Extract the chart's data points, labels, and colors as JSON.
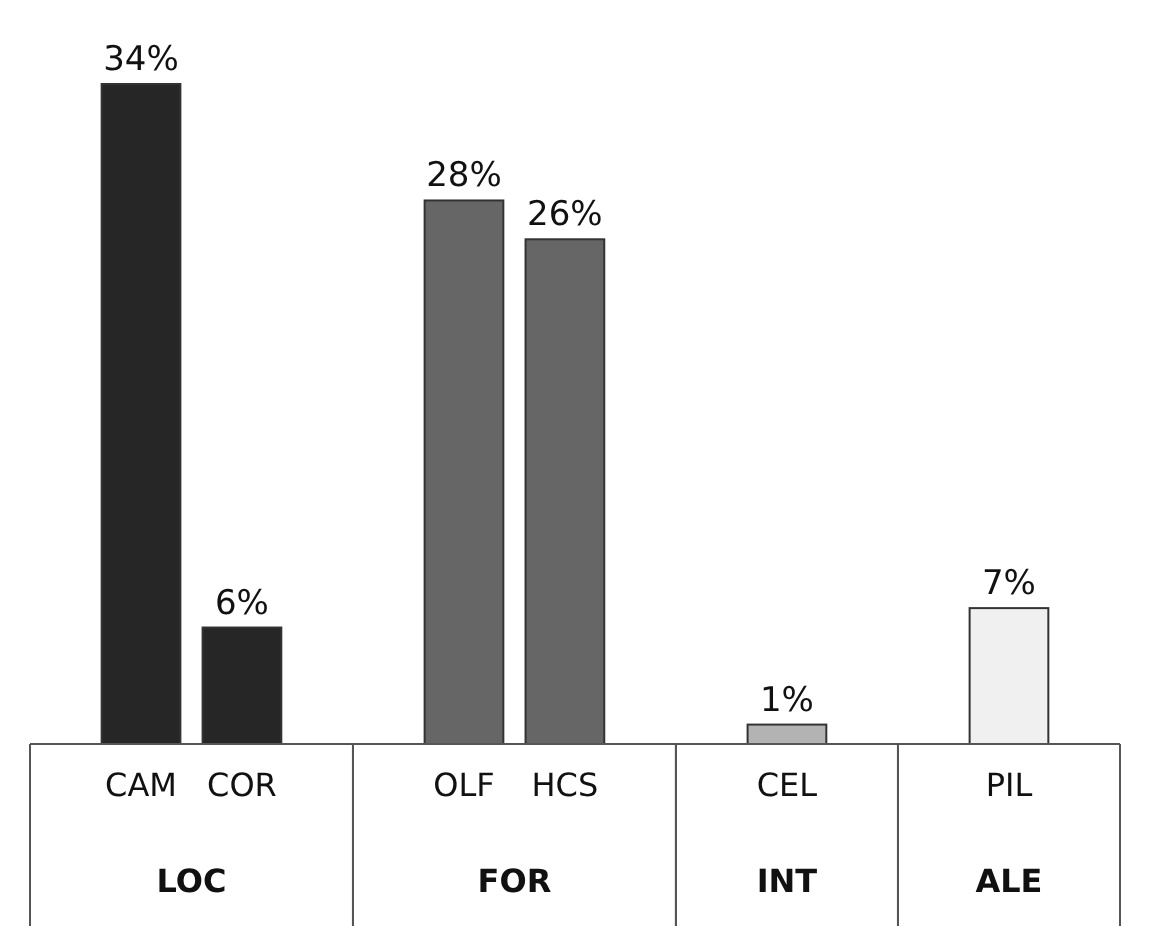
{
  "chart_data": {
    "type": "bar",
    "categories": [
      "CAM",
      "COR",
      "OLF",
      "HCS",
      "CEL",
      "PIL"
    ],
    "values": [
      34,
      6,
      28,
      26,
      1,
      7
    ],
    "colors": [
      "#262626",
      "#262626",
      "#666666",
      "#666666",
      "#b3b3b3",
      "#f0f0f0"
    ],
    "value_labels": [
      "34%",
      "6%",
      "28%",
      "26%",
      "1%",
      "7%"
    ],
    "annotations": [
      "LOC",
      "FOR",
      "INT",
      "ALE"
    ]
  }
}
